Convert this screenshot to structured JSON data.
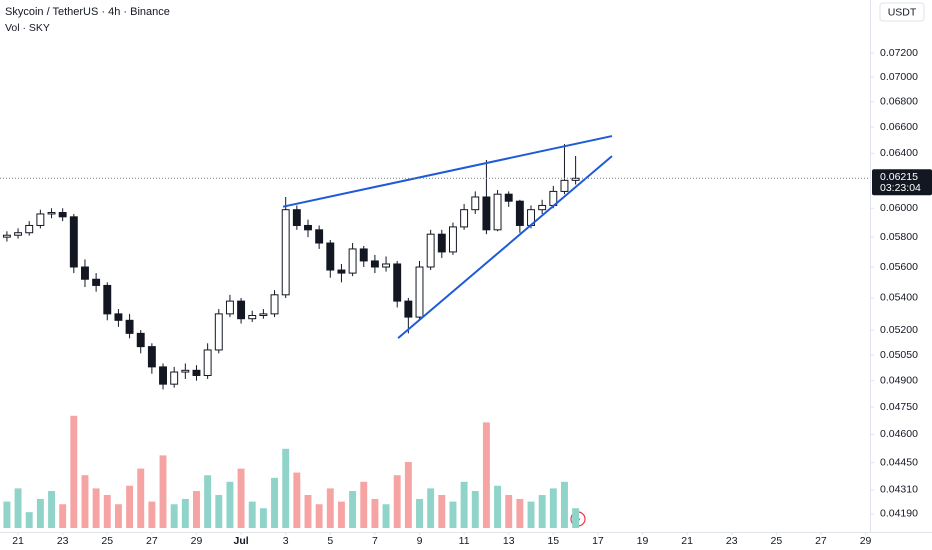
{
  "chart_data": {
    "type": "candlestick",
    "title": "Skycoin / TetherUS · 4h · Binance",
    "volume_label": "Vol · SKY",
    "currency": "USDT",
    "log_scale": true,
    "grid": false,
    "up_color": "#ffffff",
    "down_color": "#131722",
    "volume_up_color": "#8fd3c9",
    "volume_down_color": "#f5a3a3",
    "x": [
      20.5,
      21.0,
      21.5,
      22.0,
      22.5,
      23.0,
      23.5,
      24.0,
      24.5,
      25.0,
      25.5,
      26.0,
      26.5,
      27.0,
      27.5,
      28.0,
      28.5,
      29.0,
      29.5,
      30.0,
      30.5,
      31.0,
      31.5,
      32.0,
      32.5,
      33.0,
      33.5,
      34.0,
      34.5,
      35.0,
      35.5,
      36.0,
      36.5,
      37.0,
      37.5,
      38.0,
      38.5,
      39.0,
      39.5,
      40.0,
      40.5,
      41.0,
      41.5,
      42.0,
      42.5,
      43.0,
      43.5,
      44.0,
      44.5,
      45.0,
      45.5,
      46.0
    ],
    "open": [
      0.058,
      0.05813,
      0.0583,
      0.0588,
      0.0596,
      0.0597,
      0.0594,
      0.056,
      0.0552,
      0.0548,
      0.053,
      0.0526,
      0.0518,
      0.051,
      0.0498,
      0.0488,
      0.0495,
      0.0496,
      0.0493,
      0.0508,
      0.053,
      0.0538,
      0.0527,
      0.0529,
      0.053,
      0.0542,
      0.0599,
      0.0588,
      0.0585,
      0.0576,
      0.0558,
      0.0556,
      0.0572,
      0.0564,
      0.056,
      0.0562,
      0.0538,
      0.0528,
      0.056,
      0.0582,
      0.057,
      0.0587,
      0.0599,
      0.0608,
      0.0585,
      0.061,
      0.0605,
      0.0588,
      0.0599,
      0.0602,
      0.0612,
      0.062
    ],
    "high": [
      0.0584,
      0.0586,
      0.0591,
      0.0599,
      0.06,
      0.06,
      0.0596,
      0.0565,
      0.0556,
      0.055,
      0.0533,
      0.053,
      0.052,
      0.0512,
      0.05,
      0.0498,
      0.05,
      0.0499,
      0.0512,
      0.0533,
      0.0542,
      0.054,
      0.0532,
      0.0533,
      0.0545,
      0.0608,
      0.0602,
      0.0592,
      0.0588,
      0.0578,
      0.0562,
      0.0576,
      0.0574,
      0.0568,
      0.0567,
      0.0564,
      0.054,
      0.0564,
      0.0585,
      0.0585,
      0.059,
      0.0603,
      0.0612,
      0.0635,
      0.0613,
      0.0612,
      0.0606,
      0.0602,
      0.0606,
      0.0616,
      0.0647,
      0.0638
    ],
    "low": [
      0.0577,
      0.0579,
      0.0581,
      0.0586,
      0.0593,
      0.0591,
      0.0556,
      0.0547,
      0.0544,
      0.0526,
      0.0522,
      0.0515,
      0.0506,
      0.0494,
      0.0485,
      0.0486,
      0.0491,
      0.049,
      0.0491,
      0.0506,
      0.0528,
      0.0524,
      0.0525,
      0.0527,
      0.0528,
      0.054,
      0.0585,
      0.058,
      0.0572,
      0.0553,
      0.055,
      0.0554,
      0.056,
      0.0556,
      0.0557,
      0.0534,
      0.0518,
      0.0526,
      0.0558,
      0.0566,
      0.0568,
      0.0585,
      0.0596,
      0.0582,
      0.0584,
      0.0601,
      0.0583,
      0.0586,
      0.0596,
      0.06,
      0.061,
      0.0617
    ],
    "close": [
      0.05813,
      0.0583,
      0.0588,
      0.0596,
      0.0597,
      0.0594,
      0.056,
      0.0552,
      0.0548,
      0.053,
      0.0526,
      0.0518,
      0.051,
      0.0498,
      0.0488,
      0.0495,
      0.0496,
      0.0493,
      0.0508,
      0.053,
      0.0538,
      0.0527,
      0.0529,
      0.053,
      0.0542,
      0.0599,
      0.0588,
      0.0585,
      0.0576,
      0.0558,
      0.0556,
      0.0572,
      0.0564,
      0.056,
      0.0562,
      0.0538,
      0.0528,
      0.056,
      0.0582,
      0.057,
      0.0587,
      0.0599,
      0.0608,
      0.0585,
      0.061,
      0.0605,
      0.0588,
      0.0599,
      0.0602,
      0.0612,
      0.062,
      0.06215
    ],
    "volume": [
      20,
      30,
      12,
      22,
      28,
      18,
      85,
      40,
      30,
      25,
      18,
      32,
      45,
      20,
      55,
      18,
      22,
      28,
      40,
      25,
      35,
      45,
      20,
      15,
      38,
      60,
      42,
      25,
      18,
      30,
      20,
      28,
      35,
      22,
      18,
      40,
      50,
      22,
      30,
      25,
      20,
      35,
      28,
      80,
      32,
      25,
      22,
      20,
      25,
      30,
      35,
      15
    ],
    "volume_lim": [
      0,
      100
    ],
    "xlim": [
      20.19,
      59.2
    ],
    "ylim": [
      0.04102,
      0.07663
    ],
    "yticks": [
      {
        "value": 0.0419,
        "label": "0.04190"
      },
      {
        "value": 0.0431,
        "label": "0.04310"
      },
      {
        "value": 0.0445,
        "label": "0.04450"
      },
      {
        "value": 0.046,
        "label": "0.04600"
      },
      {
        "value": 0.0475,
        "label": "0.04750"
      },
      {
        "value": 0.049,
        "label": "0.04900"
      },
      {
        "value": 0.0505,
        "label": "0.05050"
      },
      {
        "value": 0.052,
        "label": "0.05200"
      },
      {
        "value": 0.054,
        "label": "0.05400"
      },
      {
        "value": 0.056,
        "label": "0.05600"
      },
      {
        "value": 0.058,
        "label": "0.05800"
      },
      {
        "value": 0.06,
        "label": "0.06000"
      },
      {
        "value": 0.064,
        "label": "0.06400"
      },
      {
        "value": 0.066,
        "label": "0.06600"
      },
      {
        "value": 0.068,
        "label": "0.06800"
      },
      {
        "value": 0.07,
        "label": "0.07000"
      },
      {
        "value": 0.072,
        "label": "0.07200"
      }
    ],
    "xticks": [
      21,
      23,
      25,
      27,
      29,
      {
        "value": 31,
        "label": "Jul"
      },
      {
        "value": 33,
        "label": "3"
      },
      {
        "value": 35,
        "label": "5"
      },
      {
        "value": 37,
        "label": "7"
      },
      {
        "value": 39,
        "label": "9"
      },
      {
        "value": 41,
        "label": "11"
      },
      {
        "value": 43,
        "label": "13"
      },
      {
        "value": 45,
        "label": "15"
      },
      {
        "value": 47,
        "label": "17"
      },
      {
        "value": 49,
        "label": "19"
      },
      {
        "value": 51,
        "label": "21"
      },
      {
        "value": 53,
        "label": "23"
      },
      {
        "value": 55,
        "label": "25"
      },
      {
        "value": 57,
        "label": "27"
      },
      {
        "value": 59,
        "label": "29"
      }
    ],
    "last_price": {
      "value": 0.06215,
      "label": "0.06215"
    },
    "countdown": "03:23:04",
    "trendlines": [
      {
        "color": "#1f5bd8",
        "x": [
          32.88,
          47.63
        ],
        "y": [
          0.06011,
          0.06531
        ]
      },
      {
        "color": "#1f5bd8",
        "x": [
          38.04,
          47.63
        ],
        "y": [
          0.05151,
          0.06379
        ]
      }
    ]
  }
}
